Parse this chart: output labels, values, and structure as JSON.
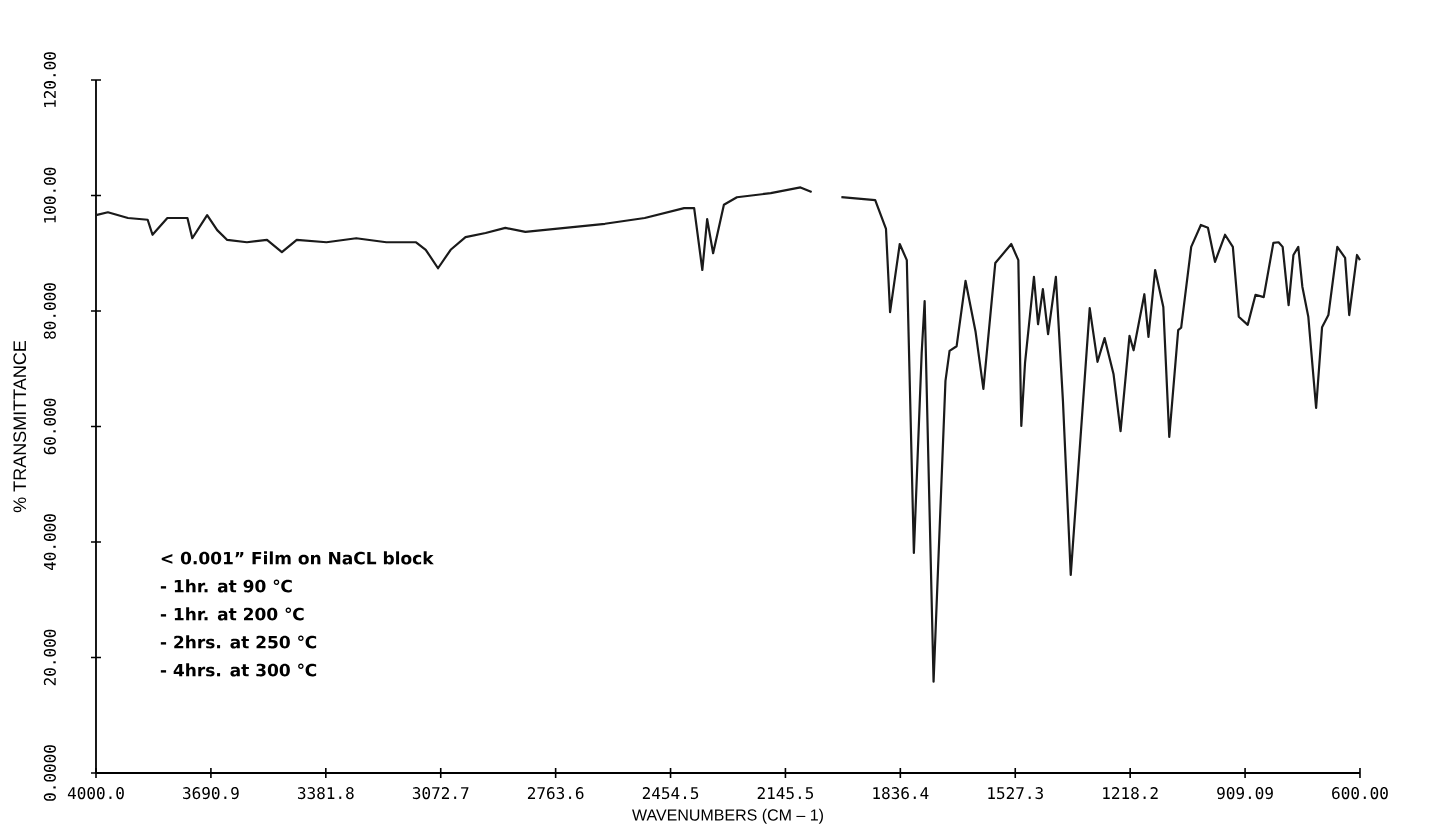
{
  "chart_data": {
    "type": "line",
    "xlabel": "WAVENUMBERS (CM – 1)",
    "ylabel": "% TRANSMITTANCE",
    "annotations": [
      "< 0.001” Film  on  NaCL block",
      "-      1hr.    at    90 ℃",
      "-      1hr.    at  200 ℃",
      "-      2hrs.  at  250 ℃",
      "-      4hrs.  at  300 ℃"
    ],
    "xlim": [
      4000,
      600
    ],
    "ylim": [
      0,
      120
    ],
    "xticks": [
      {
        "value": 4000,
        "label": "4000.0"
      },
      {
        "value": 3690.9,
        "label": "3690.9"
      },
      {
        "value": 3381.8,
        "label": "3381.8"
      },
      {
        "value": 3072.7,
        "label": "3072.7"
      },
      {
        "value": 2763.6,
        "label": "2763.6"
      },
      {
        "value": 2454.5,
        "label": "2454.5"
      },
      {
        "value": 2145.5,
        "label": "2145.5"
      },
      {
        "value": 1836.4,
        "label": "1836.4"
      },
      {
        "value": 1527.3,
        "label": "1527.3"
      },
      {
        "value": 1218.2,
        "label": "1218.2"
      },
      {
        "value": 909.09,
        "label": "909.09"
      },
      {
        "value": 600,
        "label": "600.00"
      }
    ],
    "yticks": [
      {
        "value": 0,
        "label": "0.0000"
      },
      {
        "value": 20,
        "label": "20.000"
      },
      {
        "value": 40,
        "label": "40.000"
      },
      {
        "value": 60,
        "label": "60.000"
      },
      {
        "value": 80,
        "label": "80.000"
      },
      {
        "value": 100,
        "label": "100.00"
      },
      {
        "value": 120,
        "label": "120.00"
      }
    ],
    "grid": false,
    "marker": "none",
    "line_style": "solid",
    "series": [
      {
        "color": "#1a1a1a",
        "x": [
          4000,
          3968,
          3914,
          3861,
          3848,
          3808,
          3754,
          3741,
          3701,
          3674,
          3647,
          3594,
          3540,
          3500,
          3460,
          3380,
          3300,
          3219,
          3139,
          3113,
          3080,
          3046,
          3006,
          2952,
          2899,
          2845,
          2738,
          2631,
          2524,
          2418,
          2391,
          2369,
          2356,
          2340,
          2311,
          2276,
          2185,
          2105,
          2075,
          2035,
          1995,
          1904,
          1875,
          1864,
          1838,
          1819,
          1800,
          1779,
          1771,
          1747,
          1715,
          1704,
          1685,
          1661,
          1634,
          1613,
          1581,
          1538,
          1519,
          1511,
          1501,
          1477,
          1466,
          1453,
          1439,
          1418,
          1399,
          1378,
          1327,
          1306,
          1287,
          1263,
          1244,
          1220,
          1209,
          1180,
          1169,
          1151,
          1129,
          1113,
          1089,
          1081,
          1054,
          1028,
          1009,
          990,
          963,
          942,
          926,
          902,
          881,
          859,
          833,
          819,
          808,
          792,
          779,
          766,
          755,
          739,
          718,
          702,
          685,
          661,
          640,
          629,
          608,
          600
        ],
        "values": [
          96.6,
          97.1,
          96.1,
          95.8,
          93.2,
          96.1,
          96.1,
          92.6,
          96.6,
          94.0,
          92.3,
          91.9,
          92.3,
          90.2,
          92.3,
          91.9,
          92.6,
          91.9,
          91.9,
          90.6,
          87.4,
          90.6,
          92.8,
          93.5,
          94.4,
          93.7,
          94.4,
          95.1,
          96.1,
          97.8,
          97.8,
          87.1,
          95.9,
          90.0,
          98.4,
          99.7,
          100.4,
          101.4,
          100.6,
          null,
          99.7,
          99.2,
          94.2,
          79.8,
          91.6,
          88.8,
          38.1,
          72.7,
          81.7,
          15.8,
          67.9,
          73.1,
          73.9,
          85.2,
          76.4,
          66.5,
          88.3,
          91.6,
          88.8,
          60.1,
          71.0,
          85.9,
          77.7,
          83.8,
          76.0,
          85.9,
          64.4,
          34.3,
          80.5,
          71.2,
          75.3,
          69.1,
          59.2,
          75.7,
          73.2,
          82.9,
          75.5,
          87.1,
          80.7,
          58.2,
          76.7,
          77.1,
          91.1,
          94.9,
          94.4,
          88.5,
          93.2,
          91.1,
          79.0,
          77.6,
          82.8,
          82.4,
          91.8,
          91.9,
          91.1,
          81.0,
          89.7,
          91.1,
          84.2,
          79.0,
          63.2,
          77.2,
          79.3,
          91.1,
          89.2,
          79.3,
          89.7,
          88.8
        ]
      }
    ]
  }
}
